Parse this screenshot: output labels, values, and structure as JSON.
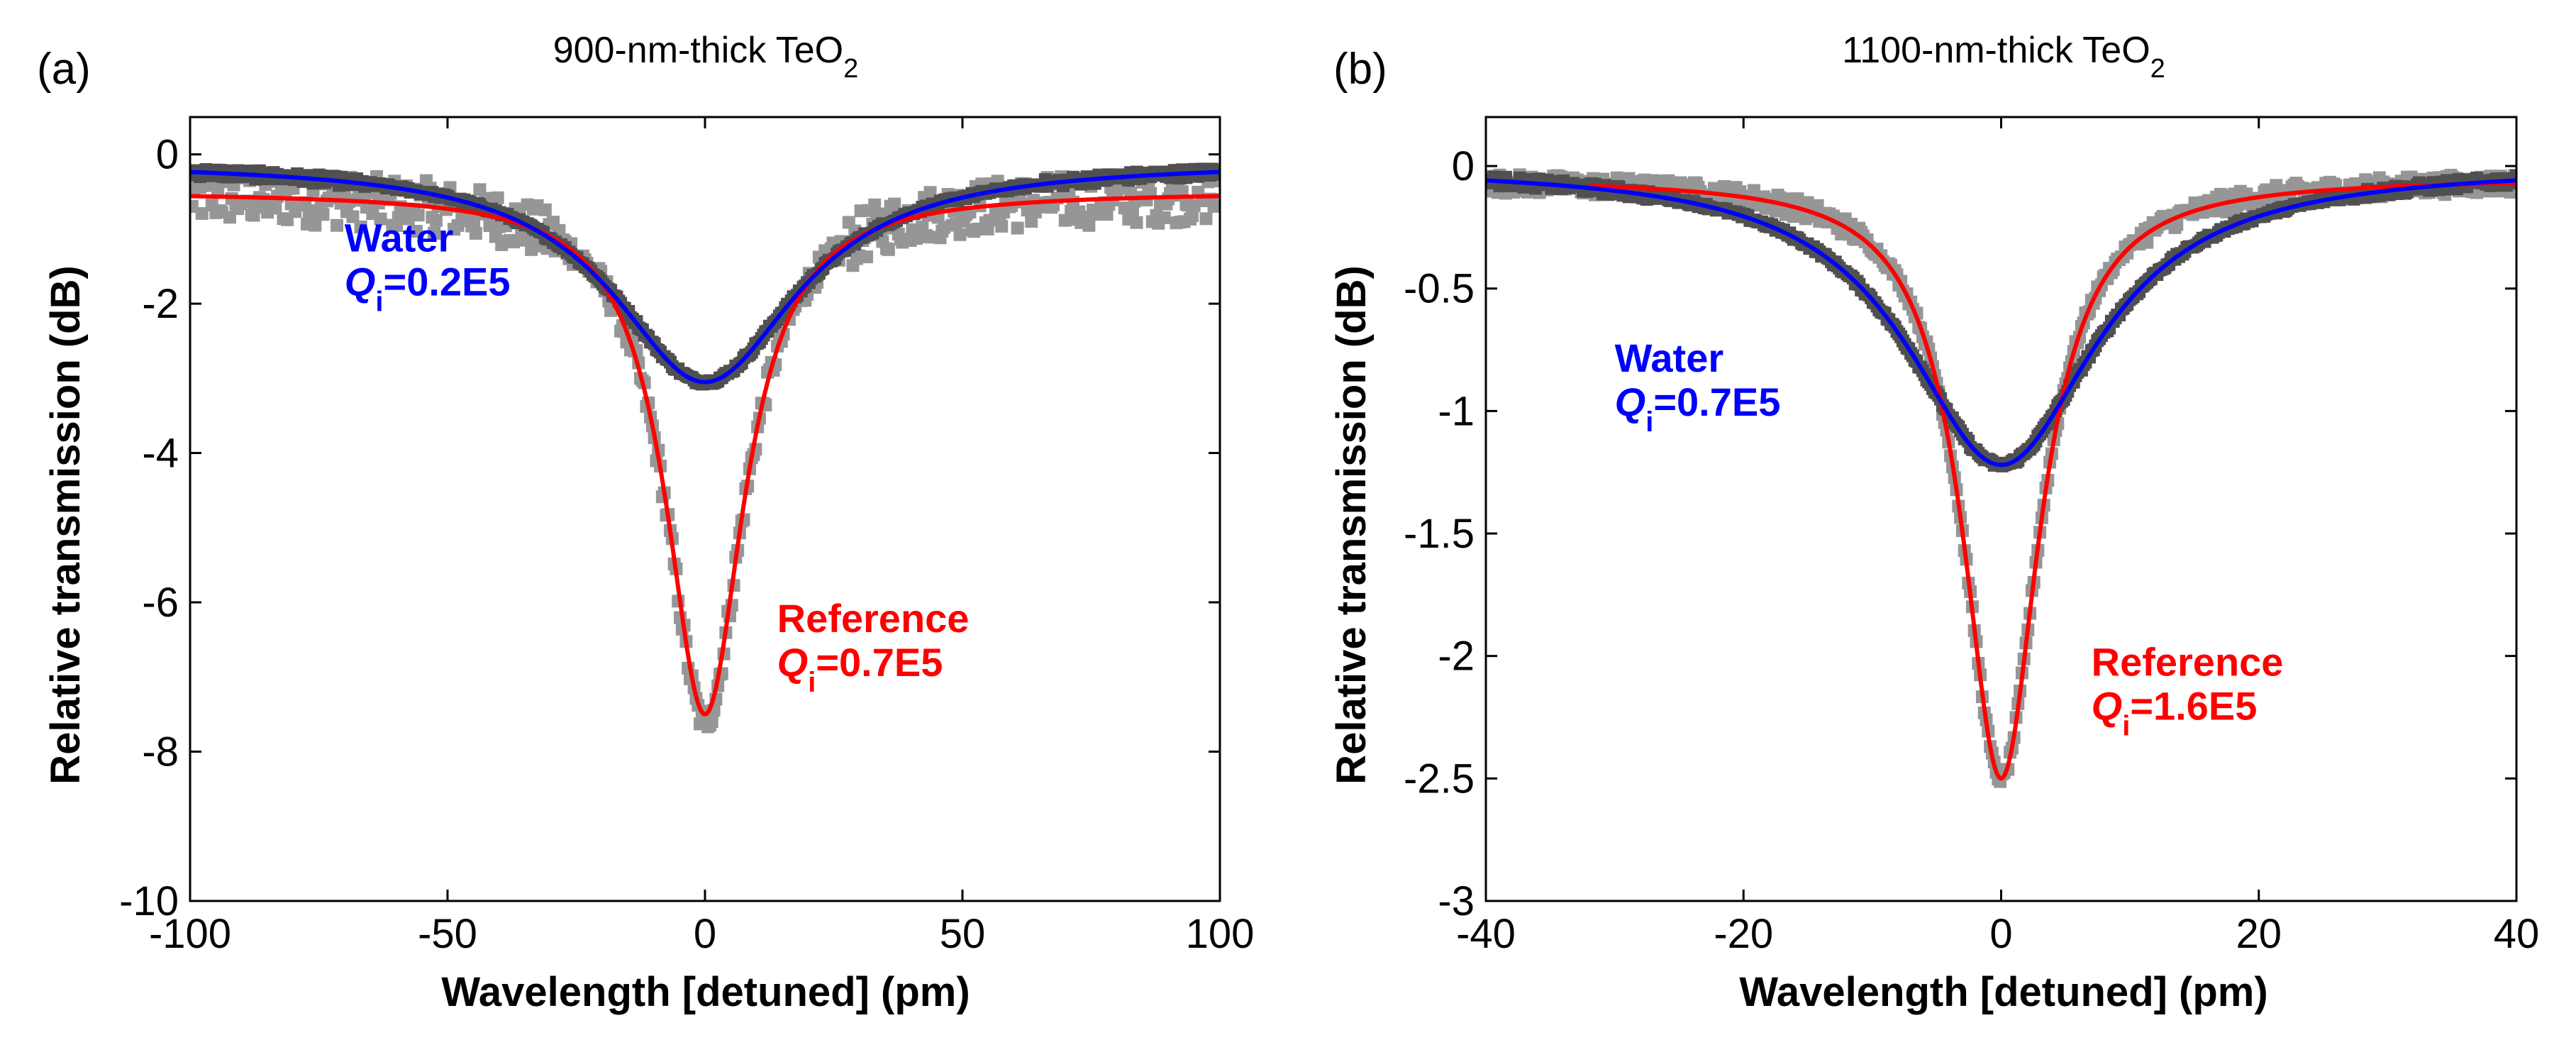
{
  "chart_data": [
    {
      "type": "line",
      "panel_label": "(a)",
      "title": "900-nm-thick TeO",
      "title_sub": "2",
      "xlabel": "Wavelength [detuned] (pm)",
      "ylabel": "Relative transmission (dB)",
      "xlim": [
        -100,
        100
      ],
      "ylim": [
        -10,
        0.5
      ],
      "xticks": [
        -100,
        -50,
        0,
        50,
        100
      ],
      "yticks": [
        0,
        -2,
        -4,
        -6,
        -8,
        -10
      ],
      "xtick_labels": [
        "-100",
        "-50",
        "0",
        "50",
        "100"
      ],
      "ytick_labels": [
        "0",
        "-2",
        "-4",
        "-6",
        "-8",
        "-10"
      ],
      "grid": false,
      "colors": {
        "reference_data": "#969696",
        "water_data": "#505050",
        "reference_fit": "#ff0000",
        "water_fit": "#0000ff"
      },
      "series": [
        {
          "name": "Reference (measured)",
          "kind": "markers",
          "color": "#969696",
          "model": {
            "baseline": -0.5,
            "depth": 7.1,
            "hwhm": 9.2,
            "noise": 0.35
          },
          "x_range": [
            -100,
            100
          ]
        },
        {
          "name": "Water (measured)",
          "kind": "markers",
          "color": "#505050",
          "model": {
            "baseline": -0.1,
            "depth": 2.95,
            "hwhm": 22,
            "noise": 0.06
          },
          "x_range": [
            -100,
            100
          ]
        },
        {
          "name": "Reference fit",
          "kind": "line",
          "color": "#ff0000",
          "model": {
            "baseline": -0.5,
            "depth": 7.0,
            "hwhm": 9.2
          },
          "x_range": [
            -100,
            100
          ]
        },
        {
          "name": "Water fit",
          "kind": "line",
          "color": "#0000ff",
          "model": {
            "baseline": -0.1,
            "depth": 2.95,
            "hwhm": 22
          },
          "x_range": [
            -100,
            100
          ]
        }
      ],
      "annotations": [
        {
          "label": "Water",
          "q_label": "Q",
          "q_sub": "i",
          "q_value": "=0.2E5",
          "color": "#0000ff",
          "x": -70,
          "y": -1.3
        },
        {
          "label": "Reference",
          "q_label": "Q",
          "q_sub": "i",
          "q_value": "=0.7E5",
          "color": "#ff0000",
          "x": 14,
          "y": -6.4
        }
      ]
    },
    {
      "type": "line",
      "panel_label": "(b)",
      "title": "1100-nm-thick TeO",
      "title_sub": "2",
      "xlabel": "Wavelength [detuned] (pm)",
      "ylabel": "Relative transmission (dB)",
      "xlim": [
        -40,
        40
      ],
      "ylim": [
        -3,
        0.2
      ],
      "xticks": [
        -40,
        -20,
        0,
        20,
        40
      ],
      "yticks": [
        0,
        -0.5,
        -1,
        -1.5,
        -2,
        -2.5,
        -3
      ],
      "xtick_labels": [
        "-40",
        "-20",
        "0",
        "20",
        "40"
      ],
      "ytick_labels": [
        "0",
        "-0.5",
        "-1",
        "-1.5",
        "-2",
        "-2.5",
        "-3"
      ],
      "grid": false,
      "colors": {
        "reference_data": "#969696",
        "water_data": "#505050",
        "reference_fit": "#ff0000",
        "water_fit": "#0000ff"
      },
      "series": [
        {
          "name": "Reference (measured)",
          "kind": "markers",
          "color": "#969696",
          "model": {
            "baseline": -0.05,
            "depth": 2.45,
            "hwhm": 3.6,
            "noise": 0.04
          },
          "x_range": [
            -40,
            40
          ]
        },
        {
          "name": "Water (measured)",
          "kind": "markers",
          "color": "#505050",
          "model": {
            "baseline": 0.0,
            "depth": 1.22,
            "hwhm": 9.0,
            "noise": 0.02
          },
          "x_range": [
            -40,
            40
          ]
        },
        {
          "name": "Reference fit",
          "kind": "line",
          "color": "#ff0000",
          "model": {
            "baseline": -0.05,
            "depth": 2.45,
            "hwhm": 3.6
          },
          "x_range": [
            -32,
            40
          ]
        },
        {
          "name": "Water fit",
          "kind": "line",
          "color": "#0000ff",
          "model": {
            "baseline": 0.0,
            "depth": 1.22,
            "hwhm": 9.0
          },
          "x_range": [
            -40,
            40
          ]
        }
      ],
      "annotations": [
        {
          "label": "Water",
          "q_label": "Q",
          "q_sub": "i",
          "q_value": "=0.7E5",
          "color": "#0000ff",
          "x": -30,
          "y": -0.84
        },
        {
          "label": "Reference",
          "q_label": "Q",
          "q_sub": "i",
          "q_value": "=1.6E5",
          "color": "#ff0000",
          "x": 7,
          "y": -2.08
        }
      ]
    }
  ]
}
